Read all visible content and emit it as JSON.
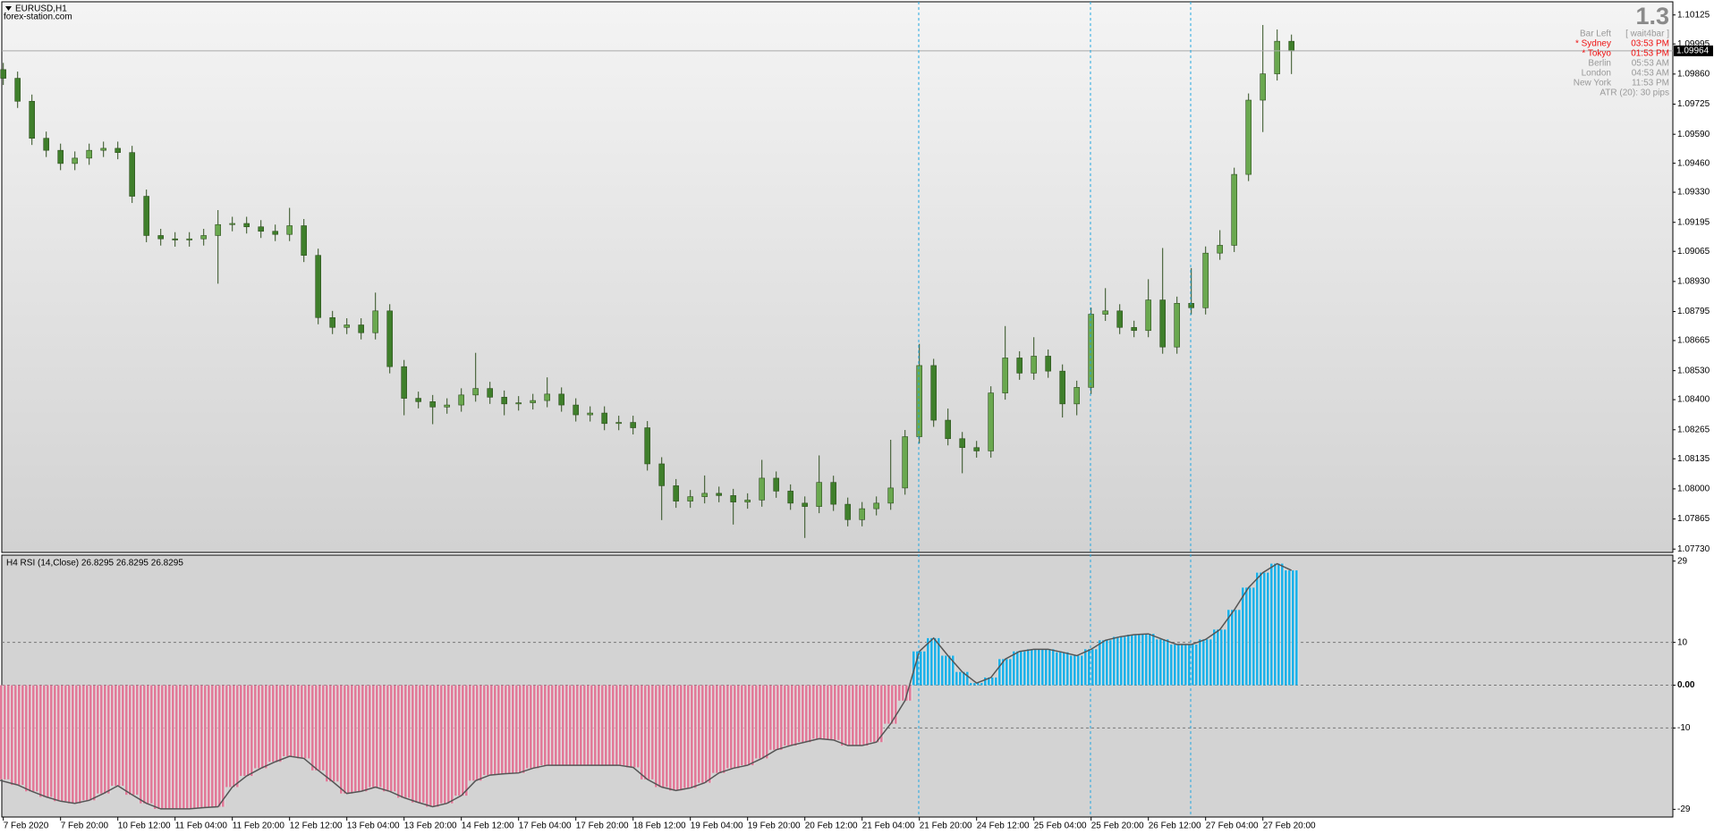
{
  "header": {
    "symbol": "EURUSD,H1",
    "site": "forex-station.com"
  },
  "info_panel": {
    "value": "1.3",
    "rows": [
      {
        "label": "Bar Left",
        "value": "[ wait4bar ]",
        "highlight": false
      },
      {
        "label": "* Sydney",
        "value": "03:53 PM",
        "highlight": true
      },
      {
        "label": "* Tokyo",
        "value": "01:53 PM",
        "highlight": true
      },
      {
        "label": "Berlin",
        "value": "05:53 AM",
        "highlight": false
      },
      {
        "label": "London",
        "value": "04:53 AM",
        "highlight": false
      },
      {
        "label": "New York",
        "value": "11:53 PM",
        "highlight": false
      },
      {
        "label": "ATR (20): 30 pips",
        "value": null,
        "highlight": false
      }
    ]
  },
  "chart_data": [
    {
      "type": "candlestick",
      "up_color": "#6aa84f",
      "down_color": "#3f7f2b",
      "wick_color": "#2f4f1f",
      "open": [
        1.0988,
        1.09841,
        1.09738,
        1.09572,
        1.09518,
        1.09459,
        1.09483,
        1.09518,
        1.09527,
        1.09508,
        1.09312,
        1.09136,
        1.09121,
        1.09116,
        1.09121,
        1.09136,
        1.09185,
        1.0919,
        1.09175,
        1.09155,
        1.09141,
        1.0918,
        1.09047,
        1.08768,
        1.08724,
        1.08735,
        1.087,
        1.08798,
        1.08548,
        1.08406,
        1.08391,
        1.08367,
        1.08376,
        1.08421,
        1.0845,
        1.08411,
        1.08381,
        1.08386,
        1.08396,
        1.08425,
        1.08376,
        1.08332,
        1.0834,
        1.08293,
        1.08298,
        1.08274,
        1.08112,
        1.08014,
        1.07945,
        1.07965,
        1.0798,
        1.0797,
        1.07941,
        1.0795,
        1.08048,
        1.0799,
        1.07936,
        1.07921,
        1.08029,
        1.07931,
        1.07862,
        1.07911,
        1.07936,
        1.08004,
        1.08234,
        1.08553,
        1.08308,
        1.08225,
        1.08185,
        1.0817,
        1.0843,
        1.08587,
        1.08519,
        1.08595,
        1.08528,
        1.08381,
        1.08455,
        1.08783,
        1.08798,
        1.08724,
        1.0871,
        1.08847,
        1.08636,
        1.08832,
        1.08812,
        1.09057,
        1.09092,
        1.0941,
        1.09743,
        1.09861,
        1.10007
      ],
      "high": [
        1.0991,
        1.09871,
        1.09768,
        1.09602,
        1.09548,
        1.09513,
        1.09548,
        1.09557,
        1.09557,
        1.09538,
        1.09342,
        1.09166,
        1.09151,
        1.09151,
        1.09166,
        1.0925,
        1.0922,
        1.0922,
        1.09205,
        1.09185,
        1.0926,
        1.0921,
        1.09077,
        1.08798,
        1.08765,
        1.08765,
        1.0888,
        1.08828,
        1.08578,
        1.08436,
        1.08421,
        1.08406,
        1.08451,
        1.0861,
        1.0848,
        1.08441,
        1.08416,
        1.08426,
        1.085,
        1.08455,
        1.08406,
        1.0837,
        1.0837,
        1.08328,
        1.08328,
        1.08304,
        1.08142,
        1.08044,
        1.07995,
        1.0806,
        1.0801,
        1.08,
        1.0798,
        1.0813,
        1.08078,
        1.0802,
        1.07966,
        1.0815,
        1.08059,
        1.07961,
        1.07941,
        1.07966,
        1.0822,
        1.08264,
        1.0865,
        1.08583,
        1.0836,
        1.08255,
        1.08215,
        1.0846,
        1.0873,
        1.08617,
        1.0868,
        1.08625,
        1.08558,
        1.08485,
        1.08813,
        1.089,
        1.08828,
        1.08754,
        1.0894,
        1.0908,
        1.08862,
        1.0899,
        1.09087,
        1.0916,
        1.0944,
        1.09773,
        1.1008,
        1.1006,
        1.10037
      ],
      "low": [
        1.09811,
        1.09708,
        1.09542,
        1.09488,
        1.09429,
        1.09429,
        1.09453,
        1.09488,
        1.09478,
        1.09282,
        1.09106,
        1.09091,
        1.09086,
        1.09086,
        1.09091,
        1.0892,
        1.09155,
        1.09145,
        1.09125,
        1.09111,
        1.09111,
        1.09017,
        1.08738,
        1.08694,
        1.08694,
        1.0867,
        1.0867,
        1.08518,
        1.0833,
        1.08361,
        1.0829,
        1.08337,
        1.08346,
        1.08391,
        1.08381,
        1.0833,
        1.08351,
        1.08356,
        1.08366,
        1.08346,
        1.08302,
        1.08302,
        1.08263,
        1.08263,
        1.08244,
        1.08082,
        1.0786,
        1.07915,
        1.07915,
        1.07935,
        1.0794,
        1.0784,
        1.07911,
        1.0792,
        1.0796,
        1.07906,
        1.0778,
        1.07891,
        1.07901,
        1.07832,
        1.07832,
        1.07881,
        1.07906,
        1.07974,
        1.08204,
        1.08278,
        1.08195,
        1.0807,
        1.0814,
        1.0814,
        1.084,
        1.08489,
        1.08489,
        1.08498,
        1.0832,
        1.0833,
        1.08425,
        1.08753,
        1.08694,
        1.0868,
        1.0868,
        1.08606,
        1.08606,
        1.08782,
        1.08782,
        1.09027,
        1.09062,
        1.0938,
        1.096,
        1.09831,
        1.0986
      ],
      "close": [
        1.09841,
        1.09738,
        1.09572,
        1.09518,
        1.09459,
        1.09483,
        1.09518,
        1.09527,
        1.09508,
        1.09312,
        1.09136,
        1.09121,
        1.09116,
        1.09121,
        1.09136,
        1.09185,
        1.0919,
        1.09175,
        1.09155,
        1.09141,
        1.0918,
        1.09047,
        1.08768,
        1.08724,
        1.08735,
        1.087,
        1.08798,
        1.08548,
        1.08406,
        1.08391,
        1.08367,
        1.08376,
        1.08421,
        1.0845,
        1.08411,
        1.08381,
        1.08386,
        1.08396,
        1.08425,
        1.08376,
        1.08332,
        1.0834,
        1.08293,
        1.08298,
        1.08274,
        1.08112,
        1.08014,
        1.07945,
        1.07965,
        1.0798,
        1.0797,
        1.07941,
        1.0795,
        1.08048,
        1.0799,
        1.07936,
        1.07921,
        1.08029,
        1.07931,
        1.07862,
        1.07911,
        1.07936,
        1.08004,
        1.08234,
        1.08553,
        1.08308,
        1.08225,
        1.08185,
        1.0817,
        1.0843,
        1.08587,
        1.08519,
        1.08595,
        1.08528,
        1.08381,
        1.08455,
        1.08783,
        1.08798,
        1.08724,
        1.0871,
        1.08847,
        1.08636,
        1.08832,
        1.08812,
        1.09057,
        1.09092,
        1.0941,
        1.09743,
        1.09861,
        1.10007,
        1.09964
      ],
      "last_price": 1.09964,
      "ylim": [
        1.07715,
        1.10184
      ],
      "yticks": [
        1.10125,
        1.09995,
        {
          "value": 1.0986,
          "label": "1.09860"
        },
        1.09725,
        {
          "value": 1.0959,
          "label": "1.09590"
        },
        {
          "value": 1.0946,
          "label": "1.09460"
        },
        {
          "value": 1.0933,
          "label": "1.09330"
        },
        1.09195,
        1.09065,
        {
          "value": 1.0893,
          "label": "1.08930"
        },
        1.08795,
        1.08665,
        {
          "value": 1.0853,
          "label": "1.08530"
        },
        {
          "value": 1.084,
          "label": "1.08400"
        },
        1.08265,
        1.08135,
        {
          "value": 1.08,
          "label": "1.08000"
        },
        1.07865,
        {
          "value": 1.0773,
          "label": "1.07730"
        }
      ],
      "x_labels": [
        "7 Feb 2020",
        "7 Feb 20:00",
        "10 Feb 12:00",
        "11 Feb 04:00",
        "11 Feb 20:00",
        "12 Feb 12:00",
        "13 Feb 04:00",
        "13 Feb 20:00",
        "14 Feb 12:00",
        "17 Feb 04:00",
        "17 Feb 20:00",
        "18 Feb 12:00",
        "19 Feb 04:00",
        "19 Feb 20:00",
        "20 Feb 12:00",
        "21 Feb 04:00",
        "21 Feb 20:00",
        "24 Feb 12:00",
        "25 Feb 04:00",
        "25 Feb 20:00",
        "26 Feb 12:00",
        "27 Feb 04:00",
        "27 Feb 20:00"
      ]
    },
    {
      "type": "histogram",
      "title": "H4 RSI (14,Close) 26.8295 26.8295 26.8295",
      "positive_color": "#1cb2ea",
      "negative_color": "#e27a99",
      "line_color": "#555555",
      "values": [
        -22.0,
        -23.3,
        -24.8,
        -26.1,
        -27.1,
        -27.6,
        -26.9,
        -25.3,
        -23.5,
        -25.6,
        -27.6,
        -28.9,
        -28.9,
        -28.9,
        -28.6,
        -28.4,
        -23.8,
        -21.2,
        -19.4,
        -17.9,
        -16.6,
        -17.1,
        -19.9,
        -22.5,
        -25.3,
        -24.8,
        -23.8,
        -24.8,
        -26.3,
        -27.4,
        -28.4,
        -27.6,
        -25.8,
        -22.3,
        -21.0,
        -20.7,
        -20.5,
        -19.4,
        -18.7,
        -18.7,
        -18.7,
        -18.7,
        -18.7,
        -18.7,
        -19.2,
        -22.0,
        -23.8,
        -24.6,
        -24.0,
        -22.8,
        -20.5,
        -19.4,
        -18.7,
        -17.1,
        -15.1,
        -14.1,
        -13.3,
        -12.5,
        -12.8,
        -14.1,
        -14.1,
        -13.3,
        -9.0,
        -3.6,
        7.9,
        11.0,
        6.9,
        3.1,
        0.5,
        1.8,
        6.1,
        7.9,
        8.4,
        8.4,
        7.7,
        6.9,
        8.4,
        10.5,
        11.3,
        11.8,
        12.0,
        10.7,
        9.5,
        9.5,
        10.7,
        13.0,
        17.6,
        22.8,
        26.3,
        28.4,
        26.8295
      ],
      "ylim": [
        -30.8,
        30.4
      ],
      "yticks": [
        29,
        10,
        {
          "value": 0,
          "label": "0.00"
        },
        -10,
        -29
      ]
    }
  ]
}
